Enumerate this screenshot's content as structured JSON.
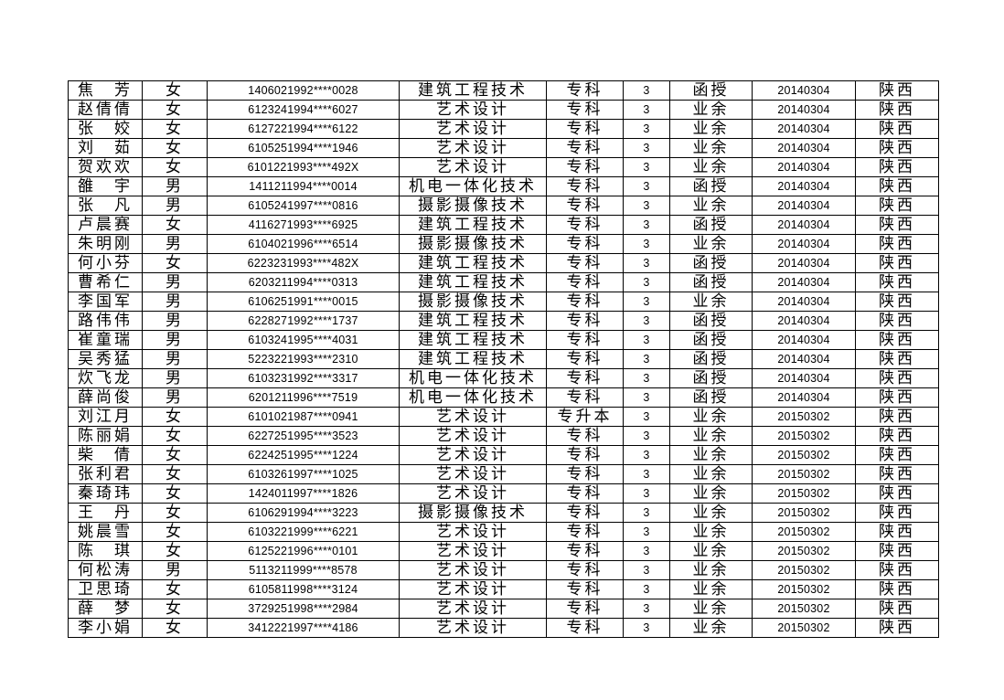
{
  "document": {
    "background_color": "#ffffff",
    "text_color": "#000000",
    "border_color": "#000000"
  },
  "table": {
    "columns": [
      {
        "key": "name",
        "font": "cjk",
        "align": "center"
      },
      {
        "key": "gender",
        "font": "cjk",
        "align": "center"
      },
      {
        "key": "id-number",
        "font": "num",
        "align": "center"
      },
      {
        "key": "major",
        "font": "cjk",
        "align": "left"
      },
      {
        "key": "education-level",
        "font": "cjk",
        "align": "center"
      },
      {
        "key": "study-years",
        "font": "num",
        "align": "center"
      },
      {
        "key": "study-mode",
        "font": "cjk",
        "align": "center"
      },
      {
        "key": "enroll-date",
        "font": "num",
        "align": "center"
      },
      {
        "key": "province",
        "font": "cjk",
        "align": "center"
      }
    ],
    "rows": [
      [
        "焦　芳",
        "女",
        "1406021992****0028",
        "建筑工程技术",
        "专科",
        "3",
        "函授",
        "20140304",
        "陕西"
      ],
      [
        "赵倩倩",
        "女",
        "6123241994****6027",
        "艺术设计",
        "专科",
        "3",
        "业余",
        "20140304",
        "陕西"
      ],
      [
        "张　姣",
        "女",
        "6127221994****6122",
        "艺术设计",
        "专科",
        "3",
        "业余",
        "20140304",
        "陕西"
      ],
      [
        "刘　茹",
        "女",
        "6105251994****1946",
        "艺术设计",
        "专科",
        "3",
        "业余",
        "20140304",
        "陕西"
      ],
      [
        "贺欢欢",
        "女",
        "6101221993****492X",
        "艺术设计",
        "专科",
        "3",
        "业余",
        "20140304",
        "陕西"
      ],
      [
        "雒　宇",
        "男",
        "1411211994****0014",
        "机电一体化技术",
        "专科",
        "3",
        "函授",
        "20140304",
        "陕西"
      ],
      [
        "张　凡",
        "男",
        "6105241997****0816",
        "摄影摄像技术",
        "专科",
        "3",
        "业余",
        "20140304",
        "陕西"
      ],
      [
        "卢晨赛",
        "女",
        "4116271993****6925",
        "建筑工程技术",
        "专科",
        "3",
        "函授",
        "20140304",
        "陕西"
      ],
      [
        "朱明刚",
        "男",
        "6104021996****6514",
        "摄影摄像技术",
        "专科",
        "3",
        "业余",
        "20140304",
        "陕西"
      ],
      [
        "何小芬",
        "女",
        "6223231993****482X",
        "建筑工程技术",
        "专科",
        "3",
        "函授",
        "20140304",
        "陕西"
      ],
      [
        "曹希仁",
        "男",
        "6203211994****0313",
        "建筑工程技术",
        "专科",
        "3",
        "函授",
        "20140304",
        "陕西"
      ],
      [
        "李国军",
        "男",
        "6106251991****0015",
        "摄影摄像技术",
        "专科",
        "3",
        "业余",
        "20140304",
        "陕西"
      ],
      [
        "路伟伟",
        "男",
        "6228271992****1737",
        "建筑工程技术",
        "专科",
        "3",
        "函授",
        "20140304",
        "陕西"
      ],
      [
        "崔童瑞",
        "男",
        "6103241995****4031",
        "建筑工程技术",
        "专科",
        "3",
        "函授",
        "20140304",
        "陕西"
      ],
      [
        "吴秀猛",
        "男",
        "5223221993****2310",
        "建筑工程技术",
        "专科",
        "3",
        "函授",
        "20140304",
        "陕西"
      ],
      [
        "炊飞龙",
        "男",
        "6103231992****3317",
        "机电一体化技术",
        "专科",
        "3",
        "函授",
        "20140304",
        "陕西"
      ],
      [
        "薛尚俊",
        "男",
        "6201211996****7519",
        "机电一体化技术",
        "专科",
        "3",
        "函授",
        "20140304",
        "陕西"
      ],
      [
        "刘江月",
        "女",
        "6101021987****0941",
        "艺术设计",
        "专升本",
        "3",
        "业余",
        "20150302",
        "陕西"
      ],
      [
        "陈丽娟",
        "女",
        "6227251995****3523",
        "艺术设计",
        "专科",
        "3",
        "业余",
        "20150302",
        "陕西"
      ],
      [
        "柴　倩",
        "女",
        "6224251995****1224",
        "艺术设计",
        "专科",
        "3",
        "业余",
        "20150302",
        "陕西"
      ],
      [
        "张利君",
        "女",
        "6103261997****1025",
        "艺术设计",
        "专科",
        "3",
        "业余",
        "20150302",
        "陕西"
      ],
      [
        "秦琦玮",
        "女",
        "1424011997****1826",
        "艺术设计",
        "专科",
        "3",
        "业余",
        "20150302",
        "陕西"
      ],
      [
        "王　丹",
        "女",
        "6106291994****3223",
        "摄影摄像技术",
        "专科",
        "3",
        "业余",
        "20150302",
        "陕西"
      ],
      [
        "姚晨雪",
        "女",
        "6103221999****6221",
        "艺术设计",
        "专科",
        "3",
        "业余",
        "20150302",
        "陕西"
      ],
      [
        "陈　琪",
        "女",
        "6125221996****0101",
        "艺术设计",
        "专科",
        "3",
        "业余",
        "20150302",
        "陕西"
      ],
      [
        "何松涛",
        "男",
        "5113211999****8578",
        "艺术设计",
        "专科",
        "3",
        "业余",
        "20150302",
        "陕西"
      ],
      [
        "卫思琦",
        "女",
        "6105811998****3124",
        "艺术设计",
        "专科",
        "3",
        "业余",
        "20150302",
        "陕西"
      ],
      [
        "薛　梦",
        "女",
        "3729251998****2984",
        "艺术设计",
        "专科",
        "3",
        "业余",
        "20150302",
        "陕西"
      ],
      [
        "李小娟",
        "女",
        "3412221997****4186",
        "艺术设计",
        "专科",
        "3",
        "业余",
        "20150302",
        "陕西"
      ]
    ]
  }
}
